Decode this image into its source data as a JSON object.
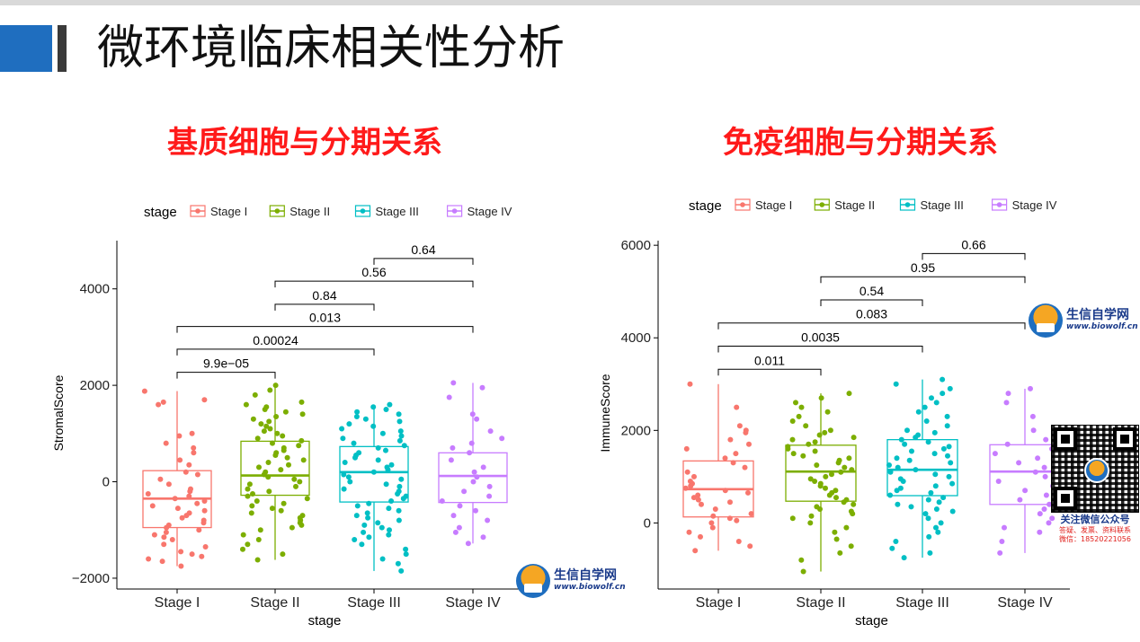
{
  "slide": {
    "title": "微环境临床相关性分析"
  },
  "charts": {
    "left_title": "基质细胞与分期关系",
    "right_title": "免疫细胞与分期关系"
  },
  "watermark": {
    "name": "生信自学网",
    "url": "www.biowolf.cn",
    "qr_caption_1": "关注微信公众号",
    "qr_caption_2": "答疑、发票、资料联系",
    "qr_caption_3": "微信：18520221056"
  },
  "colors": {
    "Stage I": "#F8766D",
    "Stage II": "#7CAE00",
    "Stage III": "#00BFC4",
    "Stage IV": "#C77CFF",
    "title_red": "#ff1a1a",
    "accent_blue": "#1f6ebf"
  },
  "chart_data": [
    {
      "type": "box",
      "title": "基质细胞与分期关系",
      "xlabel": "stage",
      "ylabel": "StromalScore",
      "legend_title": "stage",
      "legend_position": "top",
      "categories": [
        "Stage I",
        "Stage II",
        "Stage III",
        "Stage IV"
      ],
      "ylim": [
        -2150,
        5000
      ],
      "yticks": [
        -2000,
        0,
        2000,
        4000
      ],
      "ytick_labels": [
        "−2000",
        "0",
        "2000",
        "4000"
      ],
      "boxes": [
        {
          "category": "Stage I",
          "q1": -950,
          "median": -350,
          "q3": 230,
          "whisker_low": -1750,
          "whisker_high": 1880
        },
        {
          "category": "Stage II",
          "q1": -280,
          "median": 130,
          "q3": 840,
          "whisker_low": -1620,
          "whisker_high": 2000
        },
        {
          "category": "Stage III",
          "q1": -420,
          "median": 200,
          "q3": 730,
          "whisker_low": -1850,
          "whisker_high": 1600
        },
        {
          "category": "Stage IV",
          "q1": -430,
          "median": 120,
          "q3": 600,
          "whisker_low": -1280,
          "whisker_high": 2050
        }
      ],
      "comparisons": [
        {
          "pair": [
            "Stage I",
            "Stage II"
          ],
          "label": "9.9e−05",
          "y": 2270
        },
        {
          "pair": [
            "Stage I",
            "Stage III"
          ],
          "label": "0.00024",
          "y": 2750
        },
        {
          "pair": [
            "Stage I",
            "Stage IV"
          ],
          "label": "0.013",
          "y": 3220
        },
        {
          "pair": [
            "Stage II",
            "Stage III"
          ],
          "label": "0.84",
          "y": 3680
        },
        {
          "pair": [
            "Stage II",
            "Stage IV"
          ],
          "label": "0.56",
          "y": 4160
        },
        {
          "pair": [
            "Stage III",
            "Stage IV"
          ],
          "label": "0.64",
          "y": 4630
        }
      ],
      "points": {
        "Stage I": [
          1880,
          1700,
          1650,
          1600,
          1000,
          950,
          800,
          700,
          600,
          450,
          350,
          200,
          150,
          50,
          -50,
          -150,
          -200,
          -250,
          -300,
          -350,
          -400,
          -450,
          -500,
          -550,
          -600,
          -650,
          -700,
          -750,
          -800,
          -850,
          -900,
          -950,
          -1000,
          -1050,
          -1100,
          -1150,
          -1200,
          -1300,
          -1350,
          -1450,
          -1500,
          -1550,
          -1600,
          -1650,
          -1750
        ],
        "Stage II": [
          2000,
          1900,
          1800,
          1650,
          1600,
          1550,
          1500,
          1450,
          1400,
          1350,
          1300,
          1250,
          1200,
          1150,
          1100,
          1050,
          1000,
          950,
          900,
          850,
          800,
          750,
          700,
          650,
          600,
          550,
          500,
          450,
          400,
          350,
          300,
          250,
          200,
          150,
          100,
          50,
          0,
          -50,
          -100,
          -150,
          -200,
          -250,
          -300,
          -350,
          -400,
          -450,
          -500,
          -550,
          -600,
          -650,
          -700,
          -750,
          -800,
          -850,
          -900,
          -950,
          -1000,
          -1100,
          -1200,
          -1300,
          -1400,
          -1500,
          -1620
        ],
        "Stage III": [
          1600,
          1550,
          1500,
          1450,
          1400,
          1350,
          1300,
          1250,
          1200,
          1150,
          1100,
          1050,
          1000,
          950,
          900,
          850,
          800,
          750,
          700,
          650,
          600,
          550,
          500,
          450,
          400,
          350,
          300,
          250,
          200,
          150,
          100,
          50,
          0,
          -50,
          -100,
          -150,
          -200,
          -250,
          -300,
          -350,
          -400,
          -450,
          -500,
          -550,
          -600,
          -650,
          -700,
          -750,
          -800,
          -850,
          -900,
          -950,
          -1000,
          -1050,
          -1100,
          -1150,
          -1200,
          -1300,
          -1400,
          -1500,
          -1600,
          -1700,
          -1850
        ],
        "Stage IV": [
          2050,
          1950,
          1750,
          1400,
          1300,
          1050,
          900,
          800,
          700,
          600,
          450,
          300,
          200,
          100,
          0,
          -100,
          -200,
          -300,
          -400,
          -500,
          -600,
          -700,
          -800,
          -950,
          -1050,
          -1150,
          -1280
        ]
      }
    },
    {
      "type": "box",
      "title": "免疫细胞与分期关系",
      "xlabel": "stage",
      "ylabel": "ImmuneScore",
      "legend_title": "stage",
      "legend_position": "top",
      "categories": [
        "Stage I",
        "Stage II",
        "Stage III",
        "Stage IV"
      ],
      "ylim": [
        -1350,
        6100
      ],
      "yticks": [
        0,
        2000,
        4000,
        6000
      ],
      "ytick_labels": [
        "0",
        "2000",
        "4000",
        "6000"
      ],
      "boxes": [
        {
          "category": "Stage I",
          "q1": 130,
          "median": 730,
          "q3": 1340,
          "whisker_low": -600,
          "whisker_high": 3000
        },
        {
          "category": "Stage II",
          "q1": 470,
          "median": 1110,
          "q3": 1680,
          "whisker_low": -1050,
          "whisker_high": 2800
        },
        {
          "category": "Stage III",
          "q1": 590,
          "median": 1150,
          "q3": 1800,
          "whisker_low": -750,
          "whisker_high": 3100
        },
        {
          "category": "Stage IV",
          "q1": 400,
          "median": 1110,
          "q3": 1690,
          "whisker_low": -650,
          "whisker_high": 2900
        }
      ],
      "comparisons": [
        {
          "pair": [
            "Stage I",
            "Stage II"
          ],
          "label": "0.011",
          "y": 3320
        },
        {
          "pair": [
            "Stage I",
            "Stage III"
          ],
          "label": "0.0035",
          "y": 3820
        },
        {
          "pair": [
            "Stage I",
            "Stage IV"
          ],
          "label": "0.083",
          "y": 4320
        },
        {
          "pair": [
            "Stage II",
            "Stage III"
          ],
          "label": "0.54",
          "y": 4820
        },
        {
          "pair": [
            "Stage II",
            "Stage IV"
          ],
          "label": "0.95",
          "y": 5320
        },
        {
          "pair": [
            "Stage III",
            "Stage IV"
          ],
          "label": "0.66",
          "y": 5820
        }
      ],
      "points": {
        "Stage I": [
          3000,
          2500,
          2100,
          2000,
          1950,
          1800,
          1700,
          1600,
          1500,
          1400,
          1300,
          1200,
          1100,
          1000,
          900,
          850,
          800,
          750,
          700,
          650,
          600,
          550,
          500,
          450,
          400,
          300,
          200,
          150,
          100,
          50,
          0,
          -100,
          -200,
          -300,
          -400,
          -500,
          -600
        ],
        "Stage II": [
          2800,
          2700,
          2600,
          2500,
          2400,
          2300,
          2200,
          2100,
          2000,
          1950,
          1900,
          1850,
          1800,
          1750,
          1700,
          1650,
          1600,
          1550,
          1500,
          1450,
          1400,
          1350,
          1300,
          1250,
          1200,
          1150,
          1100,
          1050,
          1000,
          950,
          900,
          850,
          800,
          750,
          700,
          650,
          600,
          550,
          500,
          450,
          400,
          350,
          300,
          250,
          200,
          150,
          100,
          0,
          -100,
          -200,
          -350,
          -500,
          -650,
          -800,
          -1050
        ],
        "Stage III": [
          3100,
          3000,
          2900,
          2800,
          2700,
          2600,
          2500,
          2400,
          2300,
          2200,
          2100,
          2000,
          1950,
          1900,
          1850,
          1800,
          1750,
          1700,
          1650,
          1600,
          1550,
          1500,
          1450,
          1400,
          1350,
          1300,
          1250,
          1200,
          1150,
          1100,
          1050,
          1000,
          950,
          900,
          850,
          800,
          750,
          700,
          650,
          600,
          550,
          500,
          450,
          400,
          350,
          300,
          250,
          200,
          100,
          0,
          -100,
          -200,
          -300,
          -400,
          -550,
          -650,
          -750
        ],
        "Stage IV": [
          2900,
          2800,
          2600,
          2300,
          2000,
          1800,
          1700,
          1600,
          1500,
          1400,
          1300,
          1200,
          1100,
          1000,
          900,
          800,
          700,
          600,
          500,
          400,
          300,
          200,
          100,
          0,
          -100,
          -200,
          -400,
          -650
        ]
      }
    }
  ]
}
